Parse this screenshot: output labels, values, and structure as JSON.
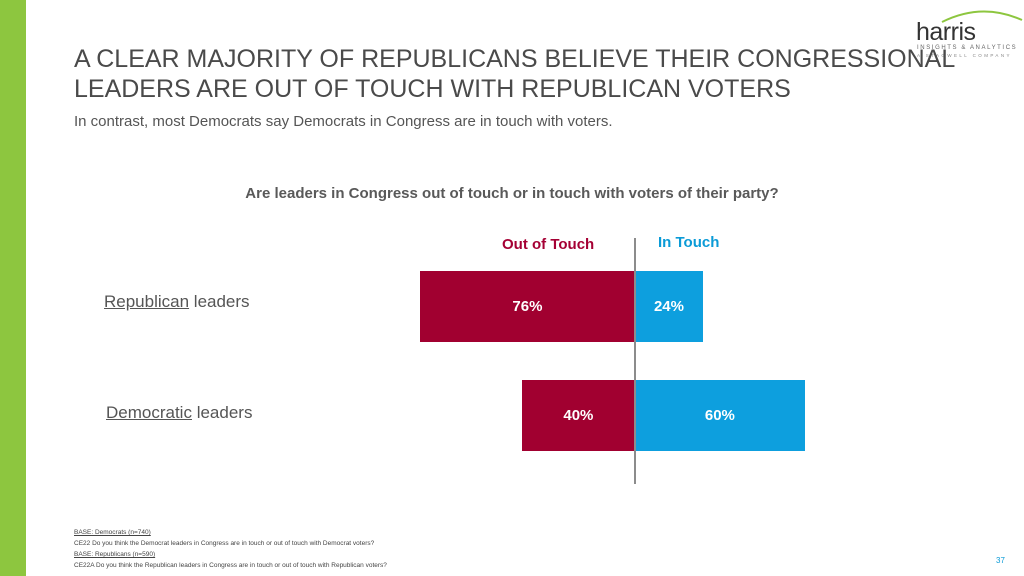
{
  "logo": {
    "wordmark": "harris",
    "tagline": "INSIGHTS & ANALYTICS",
    "subline": "A STAGWELL COMPANY"
  },
  "title": {
    "line1": "A CLEAR MAJORITY OF REPUBLICANS BELIEVE THEIR CONGRESSIONAL",
    "line2": "LEADERS ARE OUT OF TOUCH WITH REPUBLICAN VOTERS"
  },
  "subtitle": "In contrast, most Democrats say Democrats in Congress are in touch with voters.",
  "colors": {
    "out_of_touch": "#a10030",
    "in_touch": "#0d9fde",
    "accent_bar": "#8dc63f"
  },
  "chart_data": {
    "type": "bar",
    "orientation": "horizontal-diverging",
    "title": "Are leaders in Congress out of touch or in touch with voters of their party?",
    "categories": [
      {
        "underlined": "Republican",
        "rest": " leaders"
      },
      {
        "underlined": "Democratic",
        "rest": " leaders"
      }
    ],
    "series": [
      {
        "name": "Out of Touch",
        "values": [
          76,
          40
        ],
        "labels": [
          "76%",
          "40%"
        ]
      },
      {
        "name": "In Touch",
        "values": [
          24,
          60
        ],
        "labels": [
          "24%",
          "60%"
        ]
      }
    ],
    "unit": "%"
  },
  "footnotes": [
    {
      "text": "BASE: Democrats (n=740)",
      "underline": true
    },
    {
      "text": "CE22 Do you think the Democrat leaders in Congress are in touch or out of touch with Democrat voters?",
      "underline": false
    },
    {
      "text": "BASE: Republicans (n=590)",
      "underline": true
    },
    {
      "text": "CE22A Do you think the Republican leaders in Congress are in touch or out of touch with Republican voters?",
      "underline": false
    }
  ],
  "page_number": "37"
}
